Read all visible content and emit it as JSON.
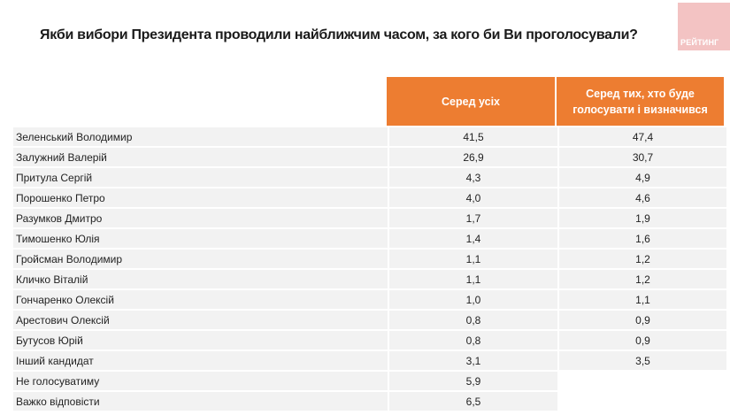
{
  "title": "Якби вибори Президента проводили найближчим часом, за кого би Ви проголосували?",
  "logo_text": "РЕЙТИНГ",
  "colors": {
    "header": "#ed7d31",
    "row": "#f2f2f2",
    "logo": "#f3c3c3"
  },
  "columns": [
    "Серед усіх",
    "Серед тих, хто буде голосувати і визначився"
  ],
  "rows": [
    {
      "name": "Зеленський Володимир",
      "all": "41,5",
      "decided": "47,4"
    },
    {
      "name": "Залужний Валерій",
      "all": "26,9",
      "decided": "30,7"
    },
    {
      "name": "Притула Сергій",
      "all": "4,3",
      "decided": "4,9"
    },
    {
      "name": "Порошенко Петро",
      "all": "4,0",
      "decided": "4,6"
    },
    {
      "name": "Разумков Дмитро",
      "all": "1,7",
      "decided": "1,9"
    },
    {
      "name": "Тимошенко Юлія",
      "all": "1,4",
      "decided": "1,6"
    },
    {
      "name": "Гройсман Володимир",
      "all": "1,1",
      "decided": "1,2"
    },
    {
      "name": "Кличко Віталій",
      "all": "1,1",
      "decided": "1,2"
    },
    {
      "name": "Гончаренко Олексій",
      "all": "1,0",
      "decided": "1,1"
    },
    {
      "name": "Арестович Олексій",
      "all": "0,8",
      "decided": "0,9"
    },
    {
      "name": "Бутусов Юрій",
      "all": "0,8",
      "decided": "0,9"
    },
    {
      "name": "Інший кандидат",
      "all": "3,1",
      "decided": "3,5"
    },
    {
      "name": "Не голосуватиму",
      "all": "5,9"
    },
    {
      "name": "Важко відповісти",
      "all": "6,5"
    }
  ]
}
